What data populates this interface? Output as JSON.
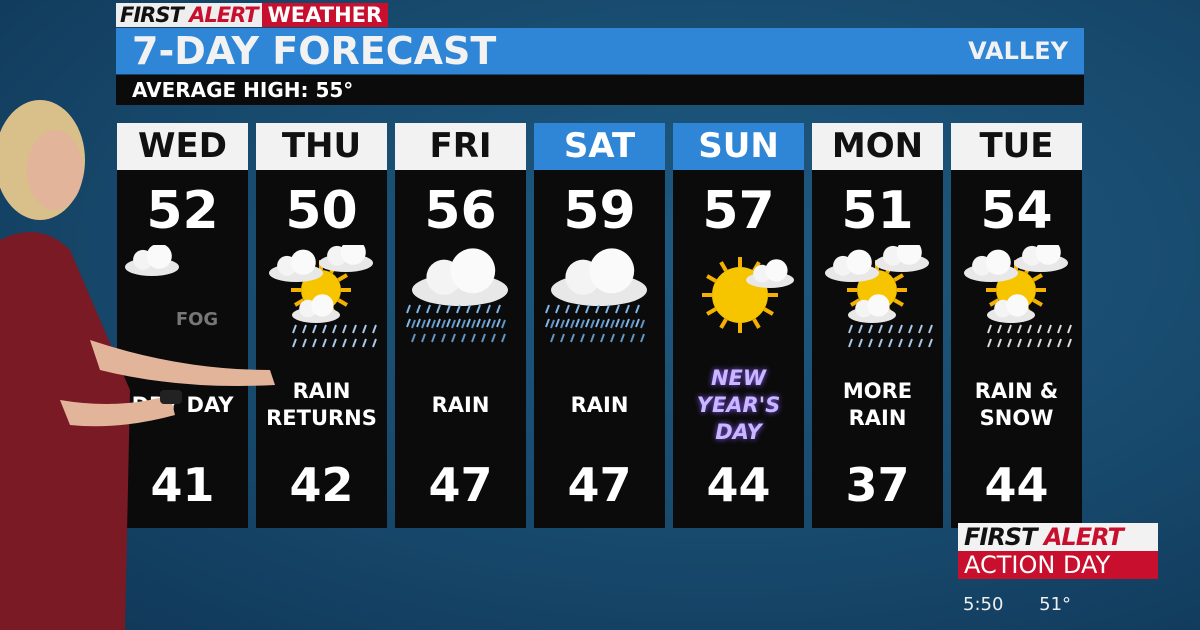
{
  "brand": {
    "part1": "FIRST",
    "part2": "ALERT",
    "part3": "WEATHER"
  },
  "title": "7-DAY FORECAST",
  "region": "VALLEY",
  "average_high": "AVERAGE HIGH: 55°",
  "colors": {
    "accent_blue": "#2f86d6",
    "alert_red": "#c8102e",
    "panel": "#0b0b0b"
  },
  "days": [
    {
      "day": "WED",
      "high": "52",
      "low": "41",
      "condition": "DRY DAY",
      "icon": "fog-cloud-icon",
      "weekend": false
    },
    {
      "day": "THU",
      "high": "50",
      "low": "42",
      "condition": "RAIN RETURNS",
      "icon": "partly-sunny-shower-icon",
      "weekend": false
    },
    {
      "day": "FRI",
      "high": "56",
      "low": "47",
      "condition": "RAIN",
      "icon": "rain-cloud-icon",
      "weekend": false
    },
    {
      "day": "SAT",
      "high": "59",
      "low": "47",
      "condition": "RAIN",
      "icon": "rain-cloud-icon",
      "weekend": true
    },
    {
      "day": "SUN",
      "high": "57",
      "low": "44",
      "condition": "NEW YEAR'S DAY",
      "icon": "mostly-sunny-icon",
      "weekend": true
    },
    {
      "day": "MON",
      "high": "51",
      "low": "37",
      "condition": "MORE RAIN",
      "icon": "partly-sunny-shower-icon",
      "weekend": false
    },
    {
      "day": "TUE",
      "high": "54",
      "low": "44",
      "condition": "RAIN & SNOW",
      "icon": "partly-sunny-mix-icon",
      "weekend": false
    }
  ],
  "fog_label": "FOG",
  "action_day": {
    "line1a": "FIRST",
    "line1b": "ALERT",
    "line2": "ACTION DAY"
  },
  "ticker": {
    "time": "5:50",
    "temp": "51°"
  }
}
